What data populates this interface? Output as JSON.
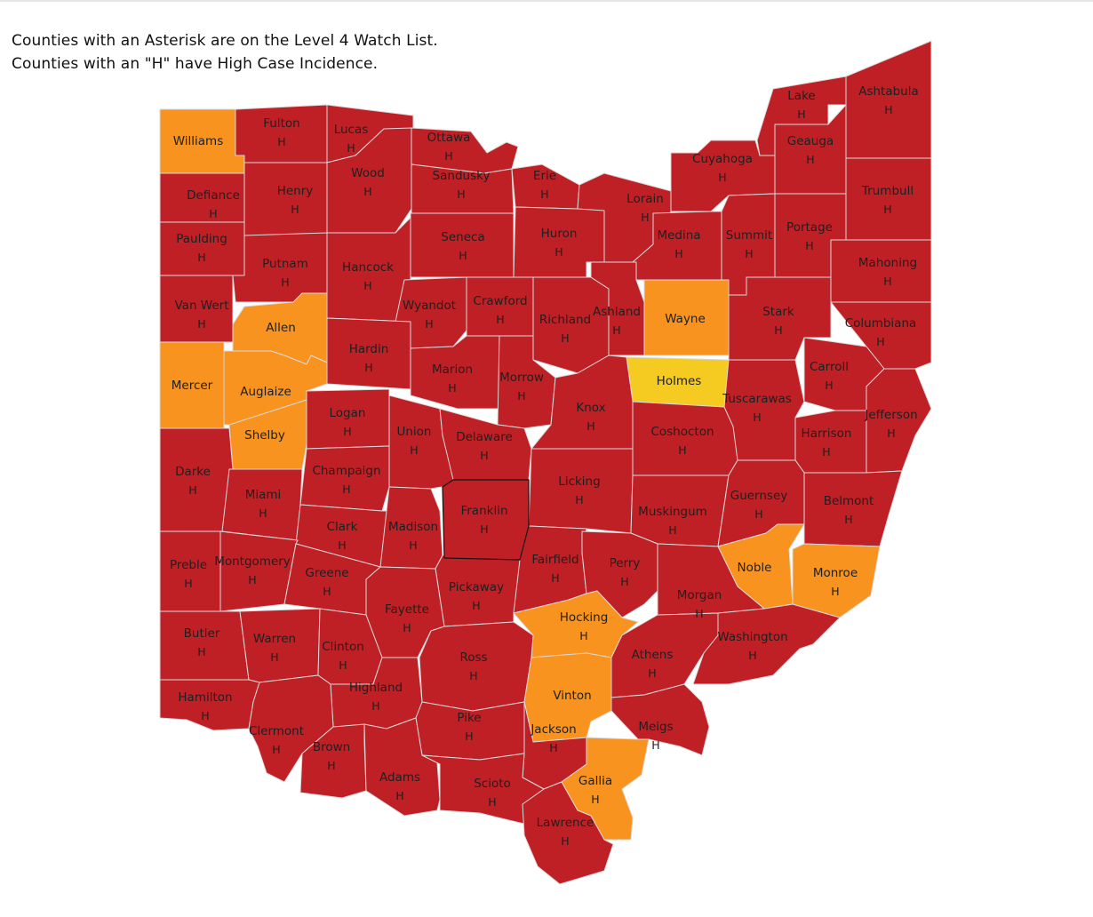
{
  "notes": [
    "Counties with an Asterisk are on the Level 4 Watch List.",
    "Counties with an \"H\" have High Case Incidence."
  ],
  "colors": {
    "level3": "#bf2026",
    "level2": "#f7931e",
    "level1": "#f5cb22",
    "border": "#d9d9d9",
    "selected_border": "#111111"
  },
  "counties": [
    {
      "name": "Williams",
      "level": "level2",
      "flag": ""
    },
    {
      "name": "Fulton",
      "level": "level3",
      "flag": "H"
    },
    {
      "name": "Lucas",
      "level": "level3",
      "flag": "H"
    },
    {
      "name": "Ottawa",
      "level": "level3",
      "flag": "H"
    },
    {
      "name": "Defiance",
      "level": "level3",
      "flag": "H"
    },
    {
      "name": "Henry",
      "level": "level3",
      "flag": "H"
    },
    {
      "name": "Wood",
      "level": "level3",
      "flag": "H"
    },
    {
      "name": "Sandusky",
      "level": "level3",
      "flag": "H"
    },
    {
      "name": "Erie",
      "level": "level3",
      "flag": "H"
    },
    {
      "name": "Lorain",
      "level": "level3",
      "flag": "H"
    },
    {
      "name": "Cuyahoga",
      "level": "level3",
      "flag": "H"
    },
    {
      "name": "Lake",
      "level": "level3",
      "flag": "H"
    },
    {
      "name": "Ashtabula",
      "level": "level3",
      "flag": "H"
    },
    {
      "name": "Geauga",
      "level": "level3",
      "flag": "H"
    },
    {
      "name": "Trumbull",
      "level": "level3",
      "flag": "H"
    },
    {
      "name": "Paulding",
      "level": "level3",
      "flag": "H"
    },
    {
      "name": "Putnam",
      "level": "level3",
      "flag": "H"
    },
    {
      "name": "Hancock",
      "level": "level3",
      "flag": "H"
    },
    {
      "name": "Seneca",
      "level": "level3",
      "flag": "H"
    },
    {
      "name": "Huron",
      "level": "level3",
      "flag": "H"
    },
    {
      "name": "Medina",
      "level": "level3",
      "flag": "H"
    },
    {
      "name": "Summit",
      "level": "level3",
      "flag": "H"
    },
    {
      "name": "Portage",
      "level": "level3",
      "flag": "H"
    },
    {
      "name": "Mahoning",
      "level": "level3",
      "flag": "H"
    },
    {
      "name": "Van Wert",
      "level": "level3",
      "flag": "H"
    },
    {
      "name": "Allen",
      "level": "level2",
      "flag": ""
    },
    {
      "name": "Wyandot",
      "level": "level3",
      "flag": "H"
    },
    {
      "name": "Crawford",
      "level": "level3",
      "flag": "H"
    },
    {
      "name": "Richland",
      "level": "level3",
      "flag": "H"
    },
    {
      "name": "Ashland",
      "level": "level3",
      "flag": "H"
    },
    {
      "name": "Wayne",
      "level": "level2",
      "flag": ""
    },
    {
      "name": "Stark",
      "level": "level3",
      "flag": "H"
    },
    {
      "name": "Columbiana",
      "level": "level3",
      "flag": "H"
    },
    {
      "name": "Mercer",
      "level": "level2",
      "flag": ""
    },
    {
      "name": "Auglaize",
      "level": "level2",
      "flag": ""
    },
    {
      "name": "Hardin",
      "level": "level3",
      "flag": "H"
    },
    {
      "name": "Marion",
      "level": "level3",
      "flag": "H"
    },
    {
      "name": "Morrow",
      "level": "level3",
      "flag": "H"
    },
    {
      "name": "Holmes",
      "level": "level1",
      "flag": ""
    },
    {
      "name": "Carroll",
      "level": "level3",
      "flag": "H"
    },
    {
      "name": "Tuscarawas",
      "level": "level3",
      "flag": "H"
    },
    {
      "name": "Shelby",
      "level": "level2",
      "flag": ""
    },
    {
      "name": "Logan",
      "level": "level3",
      "flag": "H"
    },
    {
      "name": "Union",
      "level": "level3",
      "flag": "H"
    },
    {
      "name": "Delaware",
      "level": "level3",
      "flag": "H"
    },
    {
      "name": "Knox",
      "level": "level3",
      "flag": "H"
    },
    {
      "name": "Coshocton",
      "level": "level3",
      "flag": "H"
    },
    {
      "name": "Harrison",
      "level": "level3",
      "flag": "H"
    },
    {
      "name": "Jefferson",
      "level": "level3",
      "flag": "H"
    },
    {
      "name": "Darke",
      "level": "level3",
      "flag": "H"
    },
    {
      "name": "Miami",
      "level": "level3",
      "flag": "H"
    },
    {
      "name": "Champaign",
      "level": "level3",
      "flag": "H"
    },
    {
      "name": "Licking",
      "level": "level3",
      "flag": "H"
    },
    {
      "name": "Franklin",
      "level": "level3",
      "flag": "H",
      "selected": true
    },
    {
      "name": "Muskingum",
      "level": "level3",
      "flag": "H"
    },
    {
      "name": "Guernsey",
      "level": "level3",
      "flag": "H"
    },
    {
      "name": "Belmont",
      "level": "level3",
      "flag": "H"
    },
    {
      "name": "Clark",
      "level": "level3",
      "flag": "H"
    },
    {
      "name": "Madison",
      "level": "level3",
      "flag": "H"
    },
    {
      "name": "Preble",
      "level": "level3",
      "flag": "H"
    },
    {
      "name": "Montgomery",
      "level": "level3",
      "flag": "H"
    },
    {
      "name": "Greene",
      "level": "level3",
      "flag": "H"
    },
    {
      "name": "Fairfield",
      "level": "level3",
      "flag": "H"
    },
    {
      "name": "Perry",
      "level": "level3",
      "flag": "H"
    },
    {
      "name": "Noble",
      "level": "level2",
      "flag": ""
    },
    {
      "name": "Monroe",
      "level": "level2",
      "flag": "H"
    },
    {
      "name": "Pickaway",
      "level": "level3",
      "flag": "H"
    },
    {
      "name": "Fayette",
      "level": "level3",
      "flag": "H"
    },
    {
      "name": "Morgan",
      "level": "level3",
      "flag": "H"
    },
    {
      "name": "Hocking",
      "level": "level2",
      "flag": "H"
    },
    {
      "name": "Butler",
      "level": "level3",
      "flag": "H"
    },
    {
      "name": "Warren",
      "level": "level3",
      "flag": "H"
    },
    {
      "name": "Clinton",
      "level": "level3",
      "flag": "H"
    },
    {
      "name": "Ross",
      "level": "level3",
      "flag": "H"
    },
    {
      "name": "Athens",
      "level": "level3",
      "flag": "H"
    },
    {
      "name": "Washington",
      "level": "level3",
      "flag": "H"
    },
    {
      "name": "Hamilton",
      "level": "level3",
      "flag": "H"
    },
    {
      "name": "Highland",
      "level": "level3",
      "flag": "H"
    },
    {
      "name": "Vinton",
      "level": "level2",
      "flag": ""
    },
    {
      "name": "Clermont",
      "level": "level3",
      "flag": "H"
    },
    {
      "name": "Pike",
      "level": "level3",
      "flag": "H"
    },
    {
      "name": "Jackson",
      "level": "level3",
      "flag": "H"
    },
    {
      "name": "Meigs",
      "level": "level3",
      "flag": "H"
    },
    {
      "name": "Brown",
      "level": "level3",
      "flag": "H"
    },
    {
      "name": "Adams",
      "level": "level3",
      "flag": "H"
    },
    {
      "name": "Scioto",
      "level": "level3",
      "flag": "H"
    },
    {
      "name": "Gallia",
      "level": "level2",
      "flag": "H"
    },
    {
      "name": "Lawrence",
      "level": "level3",
      "flag": "H"
    }
  ]
}
